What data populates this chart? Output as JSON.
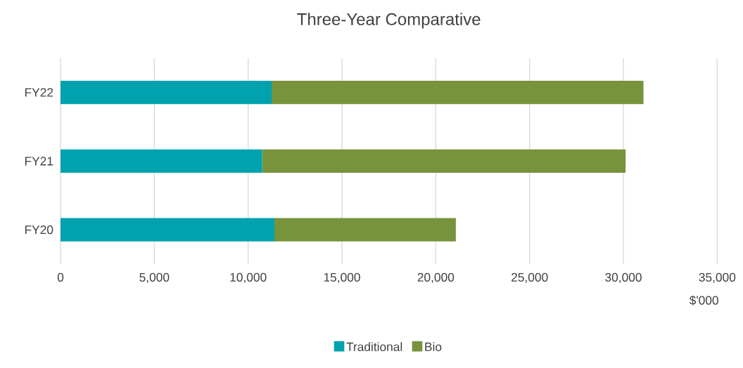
{
  "chart_data": {
    "type": "bar",
    "orientation": "horizontal",
    "stacked": true,
    "title": "Three-Year Comparative",
    "xlabel": "$'000",
    "categories": [
      "FY22",
      "FY21",
      "FY20"
    ],
    "series": [
      {
        "name": "Traditional",
        "color": "#00a2ad",
        "values": [
          11250,
          10750,
          11400
        ]
      },
      {
        "name": "Bio",
        "color": "#77933c",
        "values": [
          19820,
          19370,
          9670
        ]
      }
    ],
    "xlim": [
      0,
      35000
    ],
    "xticks": [
      {
        "value": 0,
        "label": "0"
      },
      {
        "value": 5000,
        "label": "5,000"
      },
      {
        "value": 10000,
        "label": "10,000"
      },
      {
        "value": 15000,
        "label": "15,000"
      },
      {
        "value": 20000,
        "label": "20,000"
      },
      {
        "value": 25000,
        "label": "25,000"
      },
      {
        "value": 30000,
        "label": "30,000"
      },
      {
        "value": 35000,
        "label": "35,000"
      }
    ],
    "grid": "x",
    "legend": "bottom"
  }
}
